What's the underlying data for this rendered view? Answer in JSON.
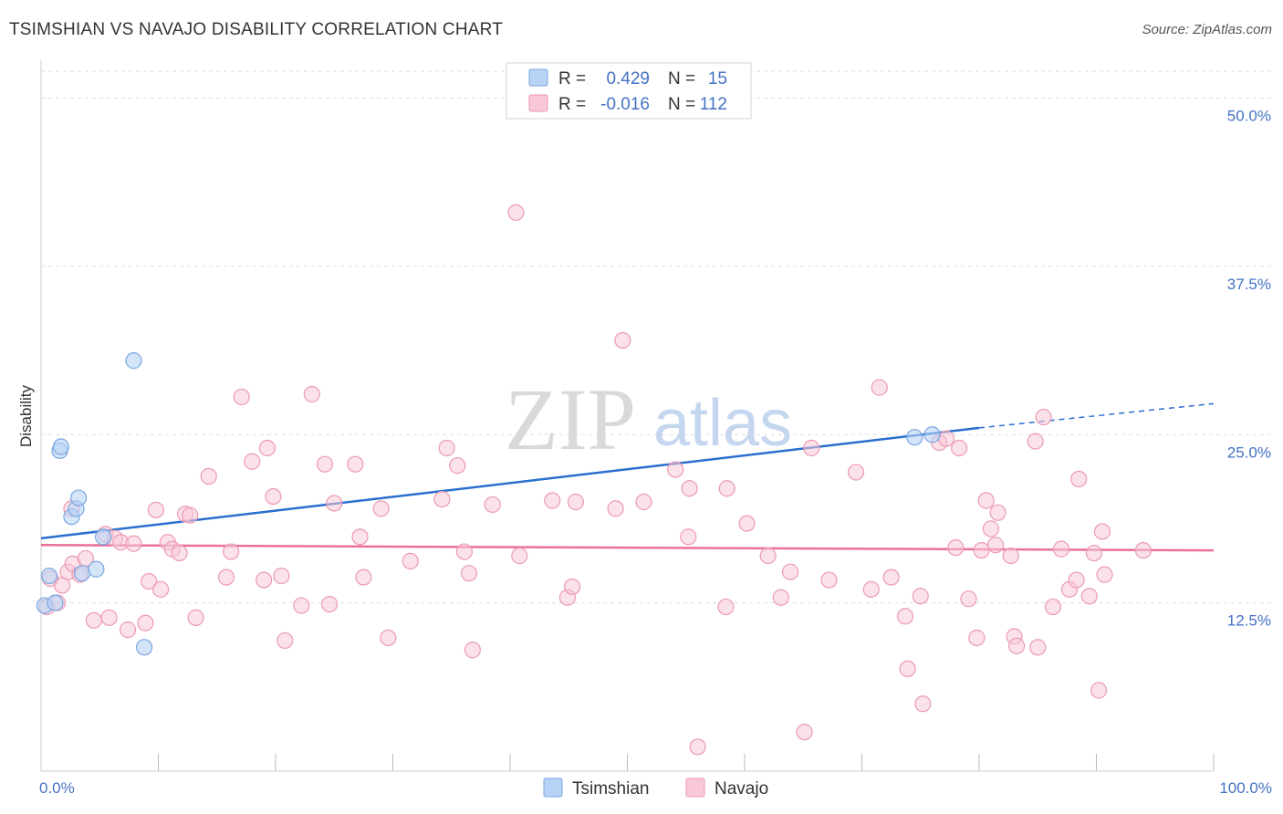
{
  "title": "TSIMSHIAN VS NAVAJO DISABILITY CORRELATION CHART",
  "source": "Source: ZipAtlas.com",
  "watermark": {
    "zip": "ZIP",
    "atlas": "atlas"
  },
  "colors": {
    "tsimshian_fill": "#b8d3f5",
    "tsimshian_stroke": "#7aa6e0",
    "tsimshian_line": "#2a6fd0",
    "navajo_fill": "#f8c8d6",
    "navajo_stroke": "#ec9ab3",
    "navajo_line": "#e8709a",
    "tick_label": "#4472c4",
    "grid": "#dddddd"
  },
  "legend": {
    "rows": [
      {
        "r_label": "R =",
        "r_value": "0.429",
        "n_label": "N =",
        "n_value": "15"
      },
      {
        "r_label": "R =",
        "r_value": "-0.016",
        "n_label": "N =",
        "n_value": "112"
      }
    ]
  },
  "chart_data": {
    "type": "scatter",
    "ylabel": "Disability",
    "xlim": [
      0,
      100
    ],
    "ylim": [
      0,
      52
    ],
    "x_tick_labels": [
      "0.0%",
      "100.0%"
    ],
    "y_ticks": [
      12.5,
      25.0,
      37.5,
      50.0
    ],
    "y_tick_labels": [
      "12.5%",
      "25.0%",
      "37.5%",
      "50.0%"
    ],
    "grid": true,
    "series": [
      {
        "name": "Tsimshian",
        "points": [
          [
            0.3,
            12.3
          ],
          [
            0.7,
            14.5
          ],
          [
            1.2,
            12.5
          ],
          [
            1.6,
            23.8
          ],
          [
            1.7,
            24.1
          ],
          [
            2.6,
            18.9
          ],
          [
            3.0,
            19.5
          ],
          [
            3.2,
            20.3
          ],
          [
            3.5,
            14.7
          ],
          [
            4.7,
            15.0
          ],
          [
            5.3,
            17.4
          ],
          [
            7.9,
            30.5
          ],
          [
            8.8,
            9.2
          ],
          [
            74.5,
            24.8
          ],
          [
            76.0,
            25.0
          ]
        ],
        "trend": {
          "x": [
            0,
            80
          ],
          "y": [
            17.3,
            25.5
          ],
          "dash_to": [
            100,
            27.3
          ]
        }
      },
      {
        "name": "Navajo",
        "points": [
          [
            0.5,
            12.2
          ],
          [
            0.8,
            14.3
          ],
          [
            1.4,
            12.5
          ],
          [
            1.8,
            13.8
          ],
          [
            2.3,
            14.8
          ],
          [
            2.6,
            19.5
          ],
          [
            2.7,
            15.4
          ],
          [
            3.3,
            14.6
          ],
          [
            3.8,
            15.8
          ],
          [
            4.5,
            11.2
          ],
          [
            5.5,
            17.6
          ],
          [
            5.8,
            11.4
          ],
          [
            6.3,
            17.3
          ],
          [
            6.8,
            17.0
          ],
          [
            7.4,
            10.5
          ],
          [
            7.9,
            16.9
          ],
          [
            8.9,
            11.0
          ],
          [
            9.2,
            14.1
          ],
          [
            9.8,
            19.4
          ],
          [
            10.2,
            13.5
          ],
          [
            10.8,
            17.0
          ],
          [
            11.2,
            16.5
          ],
          [
            11.8,
            16.2
          ],
          [
            12.3,
            19.1
          ],
          [
            12.7,
            19.0
          ],
          [
            13.2,
            11.4
          ],
          [
            14.3,
            21.9
          ],
          [
            15.8,
            14.4
          ],
          [
            16.2,
            16.3
          ],
          [
            17.1,
            27.8
          ],
          [
            18.0,
            23.0
          ],
          [
            19.0,
            14.2
          ],
          [
            19.3,
            24.0
          ],
          [
            19.8,
            20.4
          ],
          [
            20.5,
            14.5
          ],
          [
            20.8,
            9.7
          ],
          [
            22.2,
            12.3
          ],
          [
            23.1,
            28.0
          ],
          [
            24.2,
            22.8
          ],
          [
            24.6,
            12.4
          ],
          [
            25.0,
            19.9
          ],
          [
            26.8,
            22.8
          ],
          [
            27.2,
            17.4
          ],
          [
            27.5,
            14.4
          ],
          [
            29.0,
            19.5
          ],
          [
            29.6,
            9.9
          ],
          [
            31.5,
            15.6
          ],
          [
            34.2,
            20.2
          ],
          [
            34.6,
            24.0
          ],
          [
            35.5,
            22.7
          ],
          [
            36.1,
            16.3
          ],
          [
            36.5,
            14.7
          ],
          [
            36.8,
            9.0
          ],
          [
            38.5,
            19.8
          ],
          [
            40.5,
            41.5
          ],
          [
            40.8,
            16.0
          ],
          [
            43.6,
            20.1
          ],
          [
            44.9,
            12.9
          ],
          [
            45.3,
            13.7
          ],
          [
            45.6,
            20.0
          ],
          [
            49.0,
            19.5
          ],
          [
            49.6,
            32.0
          ],
          [
            51.4,
            20.0
          ],
          [
            54.1,
            22.4
          ],
          [
            55.2,
            17.4
          ],
          [
            55.3,
            21.0
          ],
          [
            56.0,
            1.8
          ],
          [
            58.4,
            12.2
          ],
          [
            58.5,
            21.0
          ],
          [
            60.2,
            18.4
          ],
          [
            62.0,
            16.0
          ],
          [
            63.1,
            12.9
          ],
          [
            63.9,
            14.8
          ],
          [
            65.1,
            2.9
          ],
          [
            65.7,
            24.0
          ],
          [
            67.2,
            14.2
          ],
          [
            69.5,
            22.2
          ],
          [
            70.8,
            13.5
          ],
          [
            71.5,
            28.5
          ],
          [
            72.5,
            14.4
          ],
          [
            73.7,
            11.5
          ],
          [
            73.9,
            7.6
          ],
          [
            75.0,
            13.0
          ],
          [
            75.2,
            5.0
          ],
          [
            76.6,
            24.4
          ],
          [
            77.2,
            24.7
          ],
          [
            78.0,
            16.6
          ],
          [
            78.3,
            24.0
          ],
          [
            79.1,
            12.8
          ],
          [
            79.8,
            9.9
          ],
          [
            80.2,
            16.4
          ],
          [
            80.6,
            20.1
          ],
          [
            81.0,
            18.0
          ],
          [
            81.4,
            16.8
          ],
          [
            81.6,
            19.2
          ],
          [
            82.7,
            16.0
          ],
          [
            83.0,
            10.0
          ],
          [
            83.2,
            9.3
          ],
          [
            84.8,
            24.5
          ],
          [
            85.0,
            9.2
          ],
          [
            85.5,
            26.3
          ],
          [
            86.3,
            12.2
          ],
          [
            87.0,
            16.5
          ],
          [
            87.7,
            13.5
          ],
          [
            88.3,
            14.2
          ],
          [
            88.5,
            21.7
          ],
          [
            89.4,
            13.0
          ],
          [
            89.8,
            16.2
          ],
          [
            90.5,
            17.8
          ],
          [
            90.7,
            14.6
          ],
          [
            90.2,
            6.0
          ],
          [
            94.0,
            16.4
          ]
        ],
        "trend": {
          "x": [
            0,
            100
          ],
          "y": [
            16.8,
            16.4
          ]
        }
      }
    ]
  }
}
